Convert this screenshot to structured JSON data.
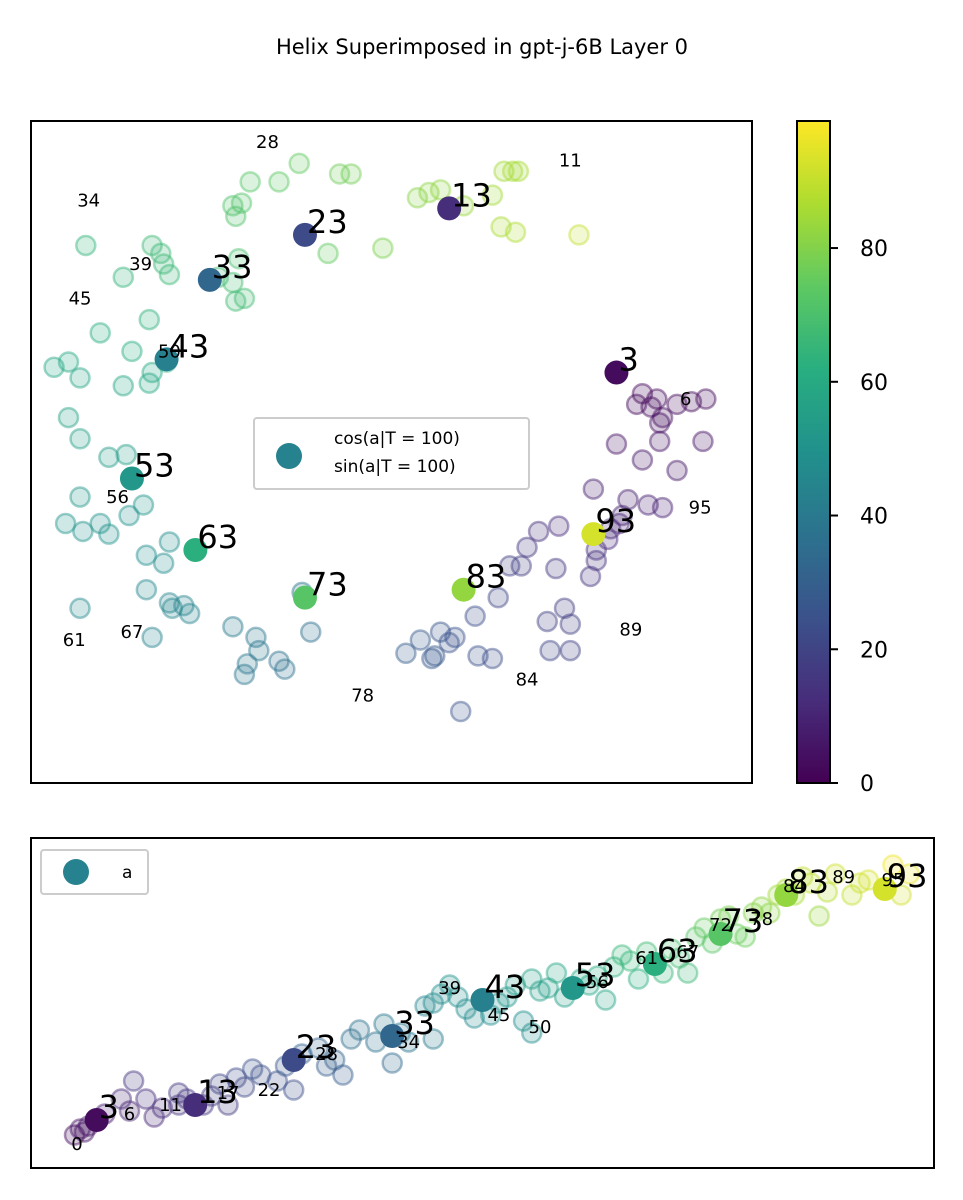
{
  "figure_title": "Helix Superimposed in gpt-j-6B Layer 0",
  "chart_data": [
    {
      "type": "scatter",
      "panel": "top",
      "xlabel": "",
      "ylabel": "",
      "xlim": [
        -1.25,
        1.25
      ],
      "ylim": [
        -1.25,
        1.25
      ],
      "grid": false,
      "ticks_visible": false,
      "legend": {
        "placement": "center-right",
        "entries": [
          "cos(a|T = 100)",
          "sin(a|T = 100)"
        ]
      },
      "colorbar": {
        "min": 0,
        "max": 99,
        "ticks": [
          0,
          20,
          40,
          60,
          80
        ],
        "cmap": "viridis"
      },
      "highlighted": [
        {
          "a": 3,
          "x": 0.78,
          "y": 0.3
        },
        {
          "a": 13,
          "x": 0.2,
          "y": 0.92
        },
        {
          "a": 23,
          "x": -0.3,
          "y": 0.82
        },
        {
          "a": 33,
          "x": -0.63,
          "y": 0.65
        },
        {
          "a": 43,
          "x": -0.78,
          "y": 0.35
        },
        {
          "a": 53,
          "x": -0.9,
          "y": -0.1
        },
        {
          "a": 63,
          "x": -0.68,
          "y": -0.37
        },
        {
          "a": 73,
          "x": -0.3,
          "y": -0.55
        },
        {
          "a": 83,
          "x": 0.25,
          "y": -0.52
        },
        {
          "a": 93,
          "x": 0.7,
          "y": -0.31
        }
      ],
      "number_labels": [
        {
          "text": "3",
          "x": 0.78,
          "y": 0.3,
          "size": "large"
        },
        {
          "text": "13",
          "x": 0.2,
          "y": 0.92,
          "size": "large"
        },
        {
          "text": "23",
          "x": -0.3,
          "y": 0.82,
          "size": "large"
        },
        {
          "text": "33",
          "x": -0.63,
          "y": 0.65,
          "size": "large"
        },
        {
          "text": "43",
          "x": -0.78,
          "y": 0.35,
          "size": "large"
        },
        {
          "text": "53",
          "x": -0.9,
          "y": -0.1,
          "size": "large"
        },
        {
          "text": "63",
          "x": -0.68,
          "y": -0.37,
          "size": "large"
        },
        {
          "text": "73",
          "x": -0.3,
          "y": -0.55,
          "size": "large"
        },
        {
          "text": "83",
          "x": 0.25,
          "y": -0.52,
          "size": "large"
        },
        {
          "text": "93",
          "x": 0.7,
          "y": -0.31,
          "size": "large"
        },
        {
          "text": "28",
          "x": -0.43,
          "y": 1.17,
          "size": "small"
        },
        {
          "text": "11",
          "x": 0.62,
          "y": 1.1,
          "size": "small"
        },
        {
          "text": "34",
          "x": -1.05,
          "y": 0.95,
          "size": "small"
        },
        {
          "text": "39",
          "x": -0.87,
          "y": 0.71,
          "size": "small"
        },
        {
          "text": "45",
          "x": -1.08,
          "y": 0.58,
          "size": "small"
        },
        {
          "text": "50",
          "x": -0.77,
          "y": 0.38,
          "size": "small"
        },
        {
          "text": "6",
          "x": 1.02,
          "y": 0.2,
          "size": "small"
        },
        {
          "text": "56",
          "x": -0.95,
          "y": -0.17,
          "size": "small"
        },
        {
          "text": "95",
          "x": 1.07,
          "y": -0.21,
          "size": "small"
        },
        {
          "text": "61",
          "x": -1.1,
          "y": -0.71,
          "size": "small"
        },
        {
          "text": "67",
          "x": -0.9,
          "y": -0.68,
          "size": "small"
        },
        {
          "text": "89",
          "x": 0.83,
          "y": -0.67,
          "size": "small"
        },
        {
          "text": "84",
          "x": 0.47,
          "y": -0.86,
          "size": "small"
        },
        {
          "text": "78",
          "x": -0.1,
          "y": -0.92,
          "size": "small"
        }
      ],
      "faded_points": [
        [
          0.87,
          0.22
        ],
        [
          0.92,
          0.2
        ],
        [
          0.9,
          0.17
        ],
        [
          0.85,
          0.18
        ],
        [
          0.99,
          0.18
        ],
        [
          1.09,
          0.2
        ],
        [
          1.04,
          0.19
        ],
        [
          1.08,
          0.04
        ],
        [
          0.93,
          0.11
        ],
        [
          0.94,
          0.13
        ],
        [
          0.09,
          0.96
        ],
        [
          0.13,
          0.98
        ],
        [
          0.17,
          0.99
        ],
        [
          0.25,
          0.93
        ],
        [
          0.35,
          0.97
        ],
        [
          0.39,
          1.06
        ],
        [
          0.42,
          1.06
        ],
        [
          0.44,
          1.06
        ],
        [
          0.38,
          0.85
        ],
        [
          0.43,
          0.83
        ],
        [
          0.65,
          0.82
        ],
        [
          -0.18,
          1.05
        ],
        [
          -0.14,
          1.05
        ],
        [
          -0.32,
          1.09
        ],
        [
          -0.39,
          1.02
        ],
        [
          -0.49,
          1.02
        ],
        [
          -0.52,
          0.94
        ],
        [
          -0.55,
          0.93
        ],
        [
          -0.54,
          0.89
        ],
        [
          -0.22,
          0.75
        ],
        [
          -0.03,
          0.77
        ],
        [
          -1.06,
          0.78
        ],
        [
          -0.8,
          0.75
        ],
        [
          -0.83,
          0.78
        ],
        [
          -0.79,
          0.71
        ],
        [
          -0.93,
          0.66
        ],
        [
          -0.77,
          0.67
        ],
        [
          -0.84,
          0.5
        ],
        [
          -0.53,
          0.73
        ],
        [
          -0.6,
          0.66
        ],
        [
          -0.55,
          0.64
        ],
        [
          -0.51,
          0.58
        ],
        [
          -0.54,
          0.57
        ],
        [
          -1.01,
          0.45
        ],
        [
          -0.9,
          0.38
        ],
        [
          -1.17,
          0.32
        ],
        [
          -1.12,
          0.34
        ],
        [
          -1.08,
          0.28
        ],
        [
          -0.78,
          0.34
        ],
        [
          -0.83,
          0.3
        ],
        [
          -0.84,
          0.26
        ],
        [
          -0.93,
          0.25
        ],
        [
          -1.12,
          0.13
        ],
        [
          -1.08,
          -0.17
        ],
        [
          -1.08,
          0.05
        ],
        [
          -0.92,
          -0.01
        ],
        [
          -0.98,
          -0.02
        ],
        [
          -0.86,
          -0.2
        ],
        [
          -1.13,
          -0.27
        ],
        [
          -1.07,
          -0.3
        ],
        [
          -1.01,
          -0.27
        ],
        [
          -0.98,
          -0.31
        ],
        [
          -0.91,
          -0.24
        ],
        [
          -0.85,
          -0.39
        ],
        [
          -0.79,
          -0.42
        ],
        [
          -0.77,
          -0.34
        ],
        [
          -1.08,
          -0.59
        ],
        [
          -0.85,
          -0.52
        ],
        [
          -0.77,
          -0.57
        ],
        [
          -0.76,
          -0.59
        ],
        [
          -0.72,
          -0.58
        ],
        [
          -0.7,
          -0.61
        ],
        [
          -0.83,
          -0.7
        ],
        [
          -0.55,
          -0.66
        ],
        [
          -0.51,
          -0.84
        ],
        [
          -0.46,
          -0.75
        ],
        [
          -0.5,
          -0.8
        ],
        [
          -0.47,
          -0.7
        ],
        [
          -0.37,
          -0.82
        ],
        [
          -0.28,
          -0.68
        ],
        [
          -0.39,
          -0.79
        ],
        [
          -0.31,
          -0.53
        ],
        [
          0.1,
          -0.71
        ],
        [
          0.2,
          -0.72
        ],
        [
          0.17,
          -0.68
        ],
        [
          0.15,
          -0.77
        ],
        [
          0.3,
          -0.77
        ],
        [
          0.22,
          -0.7
        ],
        [
          0.29,
          -0.62
        ],
        [
          0.37,
          -0.55
        ],
        [
          0.35,
          -0.78
        ],
        [
          0.14,
          -0.78
        ],
        [
          0.05,
          -0.76
        ],
        [
          0.24,
          -0.98
        ],
        [
          0.55,
          -0.75
        ],
        [
          0.54,
          -0.64
        ],
        [
          0.62,
          -0.65
        ],
        [
          0.62,
          -0.75
        ],
        [
          0.6,
          -0.59
        ],
        [
          0.71,
          -0.37
        ],
        [
          0.75,
          -0.33
        ],
        [
          0.79,
          -0.27
        ],
        [
          0.76,
          -0.29
        ],
        [
          0.8,
          -0.24
        ],
        [
          0.89,
          -0.2
        ],
        [
          0.94,
          -0.21
        ],
        [
          0.71,
          -0.41
        ],
        [
          0.69,
          -0.47
        ],
        [
          0.57,
          -0.44
        ],
        [
          0.45,
          -0.43
        ],
        [
          0.41,
          -0.43
        ],
        [
          0.47,
          -0.36
        ],
        [
          0.51,
          -0.3
        ],
        [
          0.58,
          -0.28
        ],
        [
          0.78,
          0.03
        ],
        [
          0.87,
          -0.03
        ],
        [
          0.93,
          0.04
        ],
        [
          0.99,
          -0.07
        ],
        [
          0.7,
          -0.14
        ],
        [
          0.82,
          -0.18
        ]
      ]
    },
    {
      "type": "scatter",
      "panel": "bottom",
      "xlabel": "",
      "ylabel": "",
      "xlim": [
        -0.05,
        1.05
      ],
      "ylim": [
        -0.05,
        1.05
      ],
      "grid": false,
      "ticks_visible": false,
      "legend": {
        "placement": "top-left",
        "entries": [
          "a"
        ]
      },
      "highlighted": [
        {
          "a": 3,
          "x": 0.03,
          "y": 0.11
        },
        {
          "a": 13,
          "x": 0.15,
          "y": 0.16
        },
        {
          "a": 23,
          "x": 0.27,
          "y": 0.31
        },
        {
          "a": 33,
          "x": 0.39,
          "y": 0.39
        },
        {
          "a": 43,
          "x": 0.5,
          "y": 0.51
        },
        {
          "a": 53,
          "x": 0.61,
          "y": 0.55
        },
        {
          "a": 63,
          "x": 0.71,
          "y": 0.63
        },
        {
          "a": 73,
          "x": 0.79,
          "y": 0.73
        },
        {
          "a": 83,
          "x": 0.87,
          "y": 0.86
        },
        {
          "a": 93,
          "x": 0.99,
          "y": 0.88
        }
      ],
      "number_labels": [
        {
          "text": "3",
          "x": 0.03,
          "y": 0.11,
          "size": "large"
        },
        {
          "text": "13",
          "x": 0.15,
          "y": 0.16,
          "size": "large"
        },
        {
          "text": "23",
          "x": 0.27,
          "y": 0.31,
          "size": "large"
        },
        {
          "text": "33",
          "x": 0.39,
          "y": 0.39,
          "size": "large"
        },
        {
          "text": "43",
          "x": 0.5,
          "y": 0.51,
          "size": "large"
        },
        {
          "text": "53",
          "x": 0.61,
          "y": 0.55,
          "size": "large"
        },
        {
          "text": "63",
          "x": 0.71,
          "y": 0.63,
          "size": "large"
        },
        {
          "text": "73",
          "x": 0.79,
          "y": 0.73,
          "size": "large"
        },
        {
          "text": "83",
          "x": 0.87,
          "y": 0.86,
          "size": "large"
        },
        {
          "text": "93",
          "x": 0.99,
          "y": 0.88,
          "size": "large"
        },
        {
          "text": "0",
          "x": 0.006,
          "y": 0.03,
          "size": "small"
        },
        {
          "text": "6",
          "x": 0.07,
          "y": 0.13,
          "size": "small"
        },
        {
          "text": "11",
          "x": 0.12,
          "y": 0.16,
          "size": "small"
        },
        {
          "text": "17",
          "x": 0.19,
          "y": 0.2,
          "size": "small"
        },
        {
          "text": "22",
          "x": 0.24,
          "y": 0.21,
          "size": "small"
        },
        {
          "text": "28",
          "x": 0.31,
          "y": 0.33,
          "size": "small"
        },
        {
          "text": "34",
          "x": 0.41,
          "y": 0.37,
          "size": "small"
        },
        {
          "text": "39",
          "x": 0.46,
          "y": 0.55,
          "size": "small"
        },
        {
          "text": "45",
          "x": 0.52,
          "y": 0.46,
          "size": "small"
        },
        {
          "text": "50",
          "x": 0.57,
          "y": 0.42,
          "size": "small"
        },
        {
          "text": "56",
          "x": 0.64,
          "y": 0.57,
          "size": "small"
        },
        {
          "text": "61",
          "x": 0.7,
          "y": 0.65,
          "size": "small"
        },
        {
          "text": "67",
          "x": 0.75,
          "y": 0.67,
          "size": "small"
        },
        {
          "text": "72",
          "x": 0.79,
          "y": 0.76,
          "size": "small"
        },
        {
          "text": "78",
          "x": 0.84,
          "y": 0.78,
          "size": "small"
        },
        {
          "text": "84",
          "x": 0.88,
          "y": 0.89,
          "size": "small"
        },
        {
          "text": "89",
          "x": 0.94,
          "y": 0.92,
          "size": "small"
        },
        {
          "text": "95",
          "x": 1.0,
          "y": 0.91,
          "size": "small"
        }
      ],
      "faded_points": [
        [
          0.003,
          0.06
        ],
        [
          0.01,
          0.08
        ],
        [
          0.015,
          0.07
        ],
        [
          0.02,
          0.09
        ],
        [
          0.04,
          0.13
        ],
        [
          0.06,
          0.18
        ],
        [
          0.07,
          0.14
        ],
        [
          0.075,
          0.24
        ],
        [
          0.09,
          0.18
        ],
        [
          0.1,
          0.12
        ],
        [
          0.11,
          0.15
        ],
        [
          0.13,
          0.16
        ],
        [
          0.13,
          0.2
        ],
        [
          0.14,
          0.18
        ],
        [
          0.16,
          0.16
        ],
        [
          0.17,
          0.19
        ],
        [
          0.18,
          0.23
        ],
        [
          0.19,
          0.16
        ],
        [
          0.2,
          0.25
        ],
        [
          0.21,
          0.22
        ],
        [
          0.22,
          0.28
        ],
        [
          0.23,
          0.26
        ],
        [
          0.25,
          0.24
        ],
        [
          0.26,
          0.29
        ],
        [
          0.28,
          0.33
        ],
        [
          0.3,
          0.35
        ],
        [
          0.32,
          0.31
        ],
        [
          0.31,
          0.29
        ],
        [
          0.34,
          0.38
        ],
        [
          0.35,
          0.41
        ],
        [
          0.37,
          0.37
        ],
        [
          0.38,
          0.43
        ],
        [
          0.4,
          0.4
        ],
        [
          0.41,
          0.37
        ],
        [
          0.43,
          0.49
        ],
        [
          0.44,
          0.5
        ],
        [
          0.45,
          0.53
        ],
        [
          0.46,
          0.56
        ],
        [
          0.47,
          0.52
        ],
        [
          0.48,
          0.48
        ],
        [
          0.49,
          0.45
        ],
        [
          0.51,
          0.46
        ],
        [
          0.52,
          0.5
        ],
        [
          0.53,
          0.52
        ],
        [
          0.54,
          0.56
        ],
        [
          0.56,
          0.58
        ],
        [
          0.57,
          0.54
        ],
        [
          0.58,
          0.55
        ],
        [
          0.59,
          0.6
        ],
        [
          0.6,
          0.52
        ],
        [
          0.62,
          0.58
        ],
        [
          0.63,
          0.56
        ],
        [
          0.64,
          0.59
        ],
        [
          0.65,
          0.51
        ],
        [
          0.66,
          0.62
        ],
        [
          0.67,
          0.66
        ],
        [
          0.68,
          0.64
        ],
        [
          0.69,
          0.58
        ],
        [
          0.7,
          0.67
        ],
        [
          0.72,
          0.6
        ],
        [
          0.73,
          0.68
        ],
        [
          0.74,
          0.65
        ],
        [
          0.75,
          0.6
        ],
        [
          0.76,
          0.72
        ],
        [
          0.77,
          0.75
        ],
        [
          0.78,
          0.7
        ],
        [
          0.79,
          0.78
        ],
        [
          0.8,
          0.79
        ],
        [
          0.81,
          0.73
        ],
        [
          0.82,
          0.72
        ],
        [
          0.83,
          0.8
        ],
        [
          0.84,
          0.82
        ],
        [
          0.85,
          0.8
        ],
        [
          0.86,
          0.86
        ],
        [
          0.87,
          0.88
        ],
        [
          0.88,
          0.86
        ],
        [
          0.89,
          0.92
        ],
        [
          0.9,
          0.9
        ],
        [
          0.92,
          0.87
        ],
        [
          0.91,
          0.79
        ],
        [
          0.93,
          0.93
        ],
        [
          0.95,
          0.86
        ],
        [
          0.96,
          0.9
        ],
        [
          0.97,
          0.91
        ],
        [
          1.0,
          0.96
        ],
        [
          1.01,
          0.86
        ],
        [
          1.02,
          0.93
        ],
        [
          0.56,
          0.4
        ],
        [
          0.27,
          0.21
        ],
        [
          0.33,
          0.26
        ],
        [
          0.39,
          0.3
        ],
        [
          0.44,
          0.38
        ],
        [
          0.55,
          0.44
        ]
      ]
    }
  ]
}
